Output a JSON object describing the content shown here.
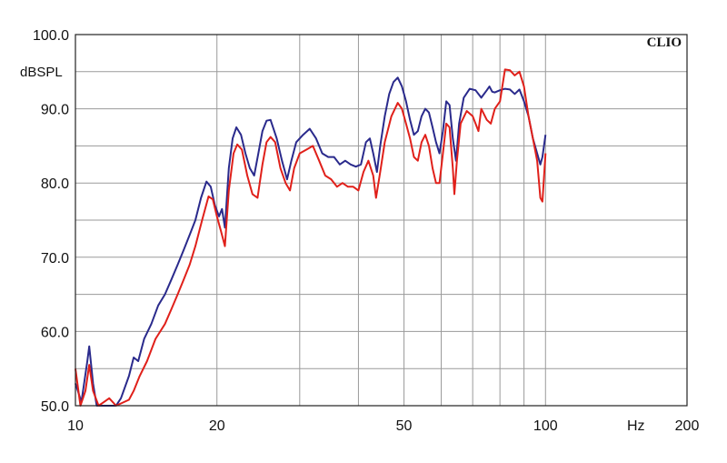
{
  "chart_data": {
    "type": "line",
    "brand_label": "CLIO",
    "ylabel": "dBSPL",
    "xunit_label": "Hz",
    "xscale": "log",
    "xlim": [
      10,
      200
    ],
    "ylim": [
      50,
      100
    ],
    "x_tick_labels": [
      {
        "value": 10,
        "label": "10"
      },
      {
        "value": 20,
        "label": "20"
      },
      {
        "value": 50,
        "label": "50"
      },
      {
        "value": 100,
        "label": "100"
      },
      {
        "value": 200,
        "label": "200"
      }
    ],
    "y_tick_labels": [
      {
        "value": 100,
        "label": "100.0"
      },
      {
        "value": 90,
        "label": "90.0"
      },
      {
        "value": 80,
        "label": "80.0"
      },
      {
        "value": 70,
        "label": "70.0"
      },
      {
        "value": 60,
        "label": "60.0"
      },
      {
        "value": 50,
        "label": "50.0"
      }
    ],
    "x_gridlines": [
      20,
      30,
      40,
      50,
      60,
      70,
      80,
      90,
      100
    ],
    "y_gridlines": [
      55,
      60,
      65,
      70,
      75,
      80,
      85,
      90,
      95
    ],
    "grid": true,
    "colors": {
      "frame": "#222222",
      "grid": "#9a9a9a",
      "blue": "#2a2a8c",
      "red": "#e0201a"
    },
    "series": [
      {
        "color": "#2a2a8c",
        "points": [
          [
            10,
            53
          ],
          [
            10.3,
            50.5
          ],
          [
            10.6,
            56
          ],
          [
            10.7,
            58
          ],
          [
            10.9,
            53
          ],
          [
            11.1,
            50
          ],
          [
            11.6,
            50
          ],
          [
            12.2,
            50
          ],
          [
            12.5,
            51
          ],
          [
            13,
            54
          ],
          [
            13.3,
            56.5
          ],
          [
            13.6,
            56
          ],
          [
            14,
            59
          ],
          [
            14.5,
            61
          ],
          [
            15,
            63.5
          ],
          [
            15.5,
            65
          ],
          [
            16,
            67
          ],
          [
            16.5,
            69
          ],
          [
            17,
            71
          ],
          [
            17.5,
            73
          ],
          [
            18,
            75
          ],
          [
            18.5,
            78
          ],
          [
            19,
            80.2
          ],
          [
            19.4,
            79.5
          ],
          [
            19.8,
            77
          ],
          [
            20.2,
            75.5
          ],
          [
            20.5,
            76.5
          ],
          [
            20.8,
            74
          ],
          [
            21.2,
            82
          ],
          [
            21.6,
            86
          ],
          [
            22,
            87.5
          ],
          [
            22.5,
            86.5
          ],
          [
            23,
            84
          ],
          [
            23.5,
            82
          ],
          [
            24,
            81
          ],
          [
            24.5,
            84
          ],
          [
            25,
            87
          ],
          [
            25.5,
            88.4
          ],
          [
            26,
            88.5
          ],
          [
            26.8,
            86
          ],
          [
            27.5,
            83
          ],
          [
            28.2,
            80.5
          ],
          [
            28.8,
            83
          ],
          [
            29.5,
            85.5
          ],
          [
            30.5,
            86.5
          ],
          [
            31.5,
            87.3
          ],
          [
            32.5,
            86
          ],
          [
            33.5,
            84
          ],
          [
            34.5,
            83.5
          ],
          [
            35.5,
            83.5
          ],
          [
            36.5,
            82.5
          ],
          [
            37.5,
            83
          ],
          [
            38.5,
            82.5
          ],
          [
            39.5,
            82.2
          ],
          [
            40.5,
            82.5
          ],
          [
            41.5,
            85.5
          ],
          [
            42.3,
            86
          ],
          [
            43,
            84
          ],
          [
            43.8,
            81.5
          ],
          [
            44.5,
            85
          ],
          [
            45.5,
            89
          ],
          [
            46.5,
            92
          ],
          [
            47.5,
            93.6
          ],
          [
            48.5,
            94.2
          ],
          [
            49.5,
            93
          ],
          [
            50.5,
            91
          ],
          [
            51.5,
            88.5
          ],
          [
            52.5,
            86.5
          ],
          [
            53.5,
            87
          ],
          [
            54.5,
            89
          ],
          [
            55.5,
            90
          ],
          [
            56.5,
            89.5
          ],
          [
            57.5,
            87.5
          ],
          [
            58.5,
            85.5
          ],
          [
            59.5,
            84
          ],
          [
            60.5,
            87
          ],
          [
            61.5,
            91
          ],
          [
            62.5,
            90.5
          ],
          [
            63.5,
            86
          ],
          [
            64.5,
            83
          ],
          [
            65.5,
            88
          ],
          [
            67,
            91.5
          ],
          [
            69,
            92.7
          ],
          [
            71,
            92.5
          ],
          [
            73,
            91.5
          ],
          [
            75,
            92.5
          ],
          [
            76,
            93
          ],
          [
            77,
            92.3
          ],
          [
            78,
            92.2
          ],
          [
            80,
            92.5
          ],
          [
            82,
            92.7
          ],
          [
            84,
            92.6
          ],
          [
            86,
            92
          ],
          [
            88,
            92.6
          ],
          [
            90,
            91
          ],
          [
            92,
            89
          ],
          [
            94,
            86
          ],
          [
            96,
            84
          ],
          [
            97.5,
            82.5
          ],
          [
            98.5,
            83.5
          ],
          [
            100,
            86.5
          ]
        ]
      },
      {
        "color": "#e0201a",
        "points": [
          [
            10,
            55
          ],
          [
            10.25,
            50
          ],
          [
            10.5,
            52
          ],
          [
            10.7,
            55.5
          ],
          [
            10.9,
            52
          ],
          [
            11.2,
            50
          ],
          [
            11.5,
            50.5
          ],
          [
            11.8,
            51
          ],
          [
            12.2,
            50
          ],
          [
            13,
            50.8
          ],
          [
            13.3,
            52
          ],
          [
            13.7,
            54
          ],
          [
            14.2,
            56
          ],
          [
            14.8,
            59
          ],
          [
            15.5,
            61
          ],
          [
            16,
            63
          ],
          [
            16.5,
            65
          ],
          [
            17,
            67
          ],
          [
            17.5,
            69
          ],
          [
            18,
            71.5
          ],
          [
            18.6,
            75
          ],
          [
            19.2,
            78.2
          ],
          [
            19.6,
            77.8
          ],
          [
            20,
            75.5
          ],
          [
            20.4,
            73.5
          ],
          [
            20.8,
            71.5
          ],
          [
            21.2,
            79
          ],
          [
            21.7,
            84
          ],
          [
            22.1,
            85.2
          ],
          [
            22.6,
            84.5
          ],
          [
            23.2,
            81
          ],
          [
            23.8,
            78.5
          ],
          [
            24.4,
            78
          ],
          [
            25,
            82.5
          ],
          [
            25.5,
            85.5
          ],
          [
            26,
            86.2
          ],
          [
            26.6,
            85.5
          ],
          [
            27.3,
            82
          ],
          [
            28,
            80
          ],
          [
            28.6,
            79
          ],
          [
            29.2,
            82
          ],
          [
            30,
            84
          ],
          [
            31,
            84.5
          ],
          [
            32,
            85
          ],
          [
            33,
            83
          ],
          [
            34,
            81
          ],
          [
            35,
            80.5
          ],
          [
            36,
            79.5
          ],
          [
            37,
            80
          ],
          [
            38,
            79.5
          ],
          [
            39,
            79.5
          ],
          [
            40,
            79
          ],
          [
            41,
            81.5
          ],
          [
            42,
            83
          ],
          [
            43,
            81
          ],
          [
            43.6,
            78
          ],
          [
            44.5,
            81.5
          ],
          [
            45.5,
            85.5
          ],
          [
            47,
            89
          ],
          [
            48.5,
            90.8
          ],
          [
            49.5,
            90
          ],
          [
            50.5,
            88
          ],
          [
            51.5,
            86
          ],
          [
            52.5,
            83.5
          ],
          [
            53.5,
            83
          ],
          [
            54.5,
            85.5
          ],
          [
            55.5,
            86.5
          ],
          [
            56.5,
            85
          ],
          [
            57.5,
            82
          ],
          [
            58.5,
            80
          ],
          [
            59.5,
            80
          ],
          [
            60.5,
            84
          ],
          [
            61.5,
            88
          ],
          [
            62.5,
            87.5
          ],
          [
            63.5,
            82
          ],
          [
            64,
            78.5
          ],
          [
            64.8,
            83
          ],
          [
            66,
            88
          ],
          [
            68,
            89.7
          ],
          [
            70,
            89
          ],
          [
            72,
            87
          ],
          [
            73,
            90
          ],
          [
            75,
            88.5
          ],
          [
            76.5,
            88
          ],
          [
            78,
            90
          ],
          [
            80,
            91
          ],
          [
            82,
            95.3
          ],
          [
            84,
            95.2
          ],
          [
            86,
            94.5
          ],
          [
            88,
            95
          ],
          [
            90,
            93
          ],
          [
            92,
            89
          ],
          [
            94,
            86
          ],
          [
            96,
            83
          ],
          [
            97.5,
            78
          ],
          [
            98.5,
            77.5
          ],
          [
            100,
            84
          ]
        ]
      }
    ]
  }
}
